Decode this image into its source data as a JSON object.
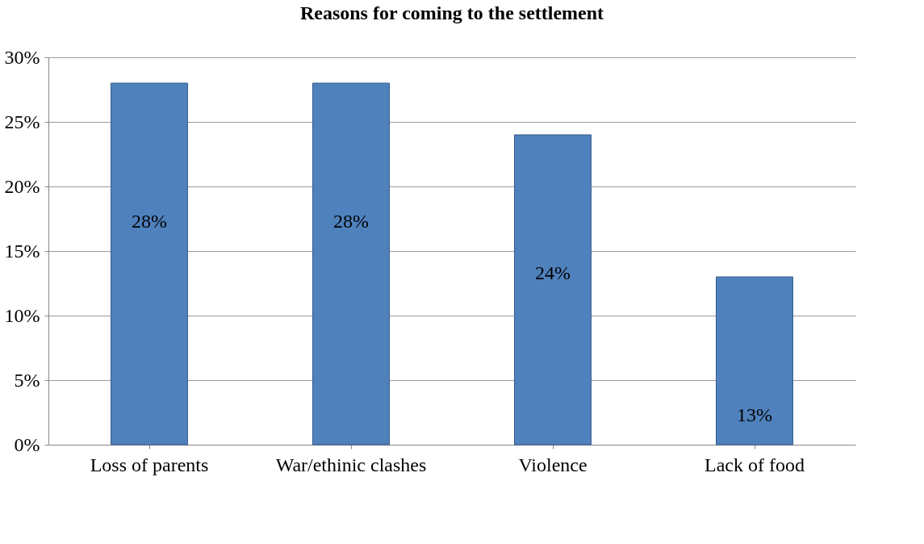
{
  "chart_data": {
    "type": "bar",
    "title": "Reasons for coming to the settlement",
    "categories": [
      "Loss of parents",
      "War/ethinic clashes",
      "Violence",
      "Lack of food"
    ],
    "values": [
      28,
      28,
      24,
      13
    ],
    "value_labels": [
      "28%",
      "28%",
      "24%",
      "13%"
    ],
    "color": "#4f81bd",
    "ylim": [
      0,
      30
    ],
    "yticks": [
      {
        "value": 0,
        "label": "0%"
      },
      {
        "value": 5,
        "label": "5%"
      },
      {
        "value": 10,
        "label": "10%"
      },
      {
        "value": 15,
        "label": "15%"
      },
      {
        "value": 20,
        "label": "20%"
      },
      {
        "value": 25,
        "label": "25%"
      },
      {
        "value": 30,
        "label": "30%"
      }
    ],
    "grid": "y"
  }
}
